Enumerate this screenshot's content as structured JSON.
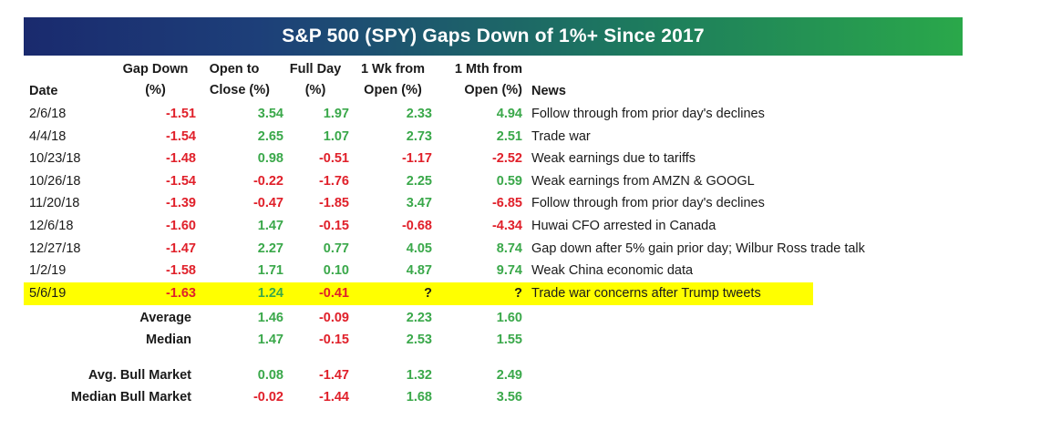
{
  "title": "S&P 500 (SPY) Gaps Down of 1%+ Since 2017",
  "headers": {
    "date": [
      "",
      "Date"
    ],
    "gap": [
      "Gap Down",
      "(%)"
    ],
    "otc": [
      "Open to",
      "Close (%)"
    ],
    "fd": [
      "Full Day",
      "(%)"
    ],
    "wk": [
      "1 Wk from",
      "Open (%)"
    ],
    "mth": [
      "1 Mth from",
      "Open (%)"
    ],
    "news": [
      "",
      "News"
    ]
  },
  "rows": [
    {
      "date": "2/6/18",
      "gap": "-1.51",
      "otc": "3.54",
      "fd": "1.97",
      "wk": "2.33",
      "mth": "4.94",
      "news": "Follow through from prior day's declines"
    },
    {
      "date": "4/4/18",
      "gap": "-1.54",
      "otc": "2.65",
      "fd": "1.07",
      "wk": "2.73",
      "mth": "2.51",
      "news": "Trade war"
    },
    {
      "date": "10/23/18",
      "gap": "-1.48",
      "otc": "0.98",
      "fd": "-0.51",
      "wk": "-1.17",
      "mth": "-2.52",
      "news": "Weak earnings due to tariffs"
    },
    {
      "date": "10/26/18",
      "gap": "-1.54",
      "otc": "-0.22",
      "fd": "-1.76",
      "wk": "2.25",
      "mth": "0.59",
      "news": "Weak earnings from AMZN & GOOGL"
    },
    {
      "date": "11/20/18",
      "gap": "-1.39",
      "otc": "-0.47",
      "fd": "-1.85",
      "wk": "3.47",
      "mth": "-6.85",
      "news": "Follow through from prior day's declines"
    },
    {
      "date": "12/6/18",
      "gap": "-1.60",
      "otc": "1.47",
      "fd": "-0.15",
      "wk": "-0.68",
      "mth": "-4.34",
      "news": "Huwai CFO arrested in Canada"
    },
    {
      "date": "12/27/18",
      "gap": "-1.47",
      "otc": "2.27",
      "fd": "0.77",
      "wk": "4.05",
      "mth": "8.74",
      "news": "Gap down after 5% gain prior day; Wilbur Ross trade talk"
    },
    {
      "date": "1/2/19",
      "gap": "-1.58",
      "otc": "1.71",
      "fd": "0.10",
      "wk": "4.87",
      "mth": "9.74",
      "news": "Weak China economic data"
    },
    {
      "date": "5/6/19",
      "gap": "-1.63",
      "otc": "1.24",
      "fd": "-0.41",
      "wk": "?",
      "mth": "?",
      "news": "Trade war concerns after Trump tweets",
      "highlight": true
    }
  ],
  "summary": [
    {
      "label": "Average",
      "otc": "1.46",
      "fd": "-0.09",
      "wk": "2.23",
      "mth": "1.60"
    },
    {
      "label": "Median",
      "otc": "1.47",
      "fd": "-0.15",
      "wk": "2.53",
      "mth": "1.55"
    },
    {
      "label": "Avg. Bull Market",
      "otc": "0.08",
      "fd": "-1.47",
      "wk": "1.32",
      "mth": "2.49"
    },
    {
      "label": "Median Bull Market",
      "otc": "-0.02",
      "fd": "-1.44",
      "wk": "1.68",
      "mth": "3.56"
    }
  ],
  "colors": {
    "positive": "#3aa84a",
    "negative": "#e0202a",
    "highlight": "#ffff00",
    "banner_start": "#1a2a6e",
    "banner_end": "#2aa84a"
  }
}
